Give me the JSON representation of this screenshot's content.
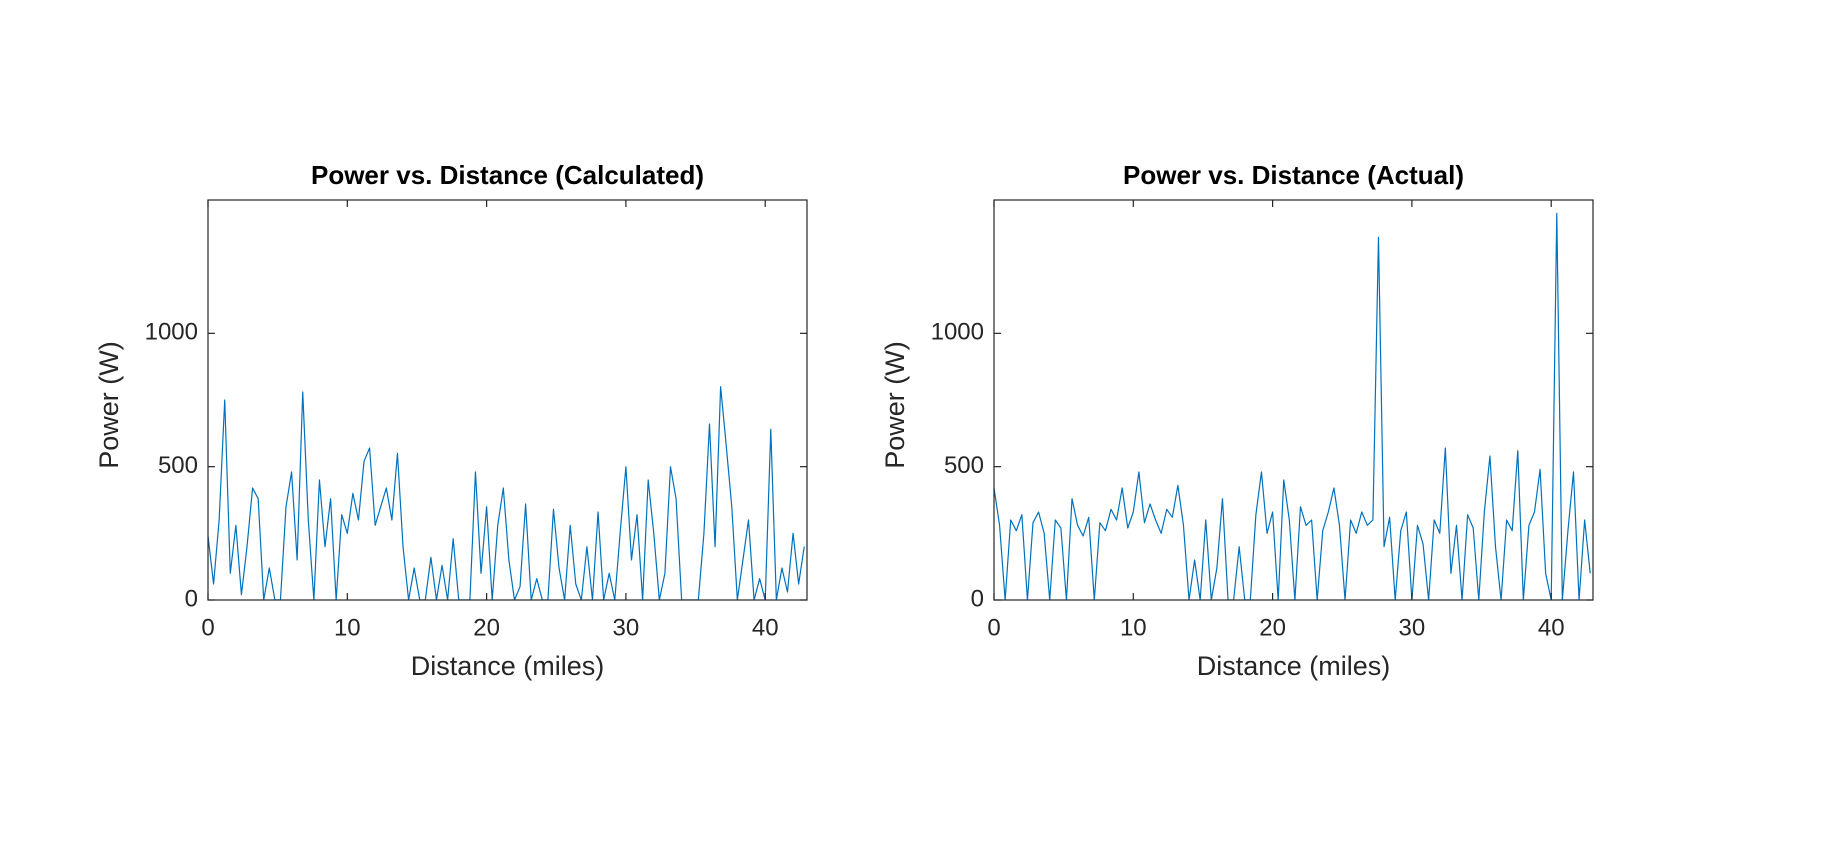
{
  "chart_data": [
    {
      "type": "line",
      "title": "Power vs. Distance (Calculated)",
      "xlabel": "Distance (miles)",
      "ylabel": "Power (W)",
      "color": "#0072bd",
      "xlim": [
        0,
        43
      ],
      "ylim": [
        0,
        1500
      ],
      "xticks": [
        0,
        10,
        20,
        30,
        40
      ],
      "yticks": [
        0,
        500,
        1000
      ],
      "grid": false,
      "x": [
        0,
        0.4,
        0.8,
        1.2,
        1.6,
        2,
        2.4,
        2.8,
        3.2,
        3.6,
        4,
        4.4,
        4.8,
        5.2,
        5.6,
        6,
        6.4,
        6.8,
        7.2,
        7.6,
        8,
        8.4,
        8.8,
        9.2,
        9.6,
        10,
        10.4,
        10.8,
        11.2,
        11.6,
        12,
        12.4,
        12.8,
        13.2,
        13.6,
        14,
        14.4,
        14.8,
        15.2,
        15.6,
        16,
        16.4,
        16.8,
        17.2,
        17.6,
        18,
        18.4,
        18.8,
        19.2,
        19.6,
        20,
        20.4,
        20.8,
        21.2,
        21.6,
        22,
        22.4,
        22.8,
        23.2,
        23.6,
        24,
        24.4,
        24.8,
        25.2,
        25.6,
        26,
        26.4,
        26.8,
        27.2,
        27.6,
        28,
        28.4,
        28.8,
        29.2,
        29.6,
        30,
        30.4,
        30.8,
        31.2,
        31.6,
        32,
        32.4,
        32.8,
        33.2,
        33.6,
        34,
        34.4,
        34.8,
        35.2,
        35.6,
        36,
        36.4,
        36.8,
        37.2,
        37.6,
        38,
        38.4,
        38.8,
        39.2,
        39.6,
        40,
        40.4,
        40.8,
        41.2,
        41.6,
        42,
        42.4,
        42.8
      ],
      "values": [
        240,
        60,
        300,
        750,
        100,
        280,
        20,
        200,
        420,
        380,
        0,
        120,
        0,
        0,
        350,
        480,
        150,
        780,
        300,
        0,
        450,
        200,
        380,
        0,
        320,
        250,
        400,
        300,
        520,
        570,
        280,
        350,
        420,
        300,
        550,
        200,
        0,
        120,
        0,
        0,
        160,
        0,
        130,
        0,
        230,
        0,
        0,
        0,
        480,
        100,
        350,
        0,
        280,
        420,
        150,
        0,
        50,
        360,
        0,
        80,
        0,
        0,
        340,
        120,
        0,
        280,
        60,
        0,
        200,
        0,
        330,
        0,
        100,
        0,
        260,
        500,
        150,
        320,
        0,
        450,
        250,
        0,
        100,
        500,
        380,
        0,
        0,
        0,
        0,
        250,
        660,
        200,
        800,
        580,
        350,
        0,
        150,
        300,
        0,
        80,
        0,
        640,
        0,
        120,
        30,
        250,
        60,
        200
      ]
    },
    {
      "type": "line",
      "title": "Power vs. Distance (Actual)",
      "xlabel": "Distance (miles)",
      "ylabel": "Power (W)",
      "color": "#0072bd",
      "xlim": [
        0,
        43
      ],
      "ylim": [
        0,
        1500
      ],
      "xticks": [
        0,
        10,
        20,
        30,
        40
      ],
      "yticks": [
        0,
        500,
        1000
      ],
      "grid": false,
      "x": [
        0,
        0.4,
        0.8,
        1.2,
        1.6,
        2,
        2.4,
        2.8,
        3.2,
        3.6,
        4,
        4.4,
        4.8,
        5.2,
        5.6,
        6,
        6.4,
        6.8,
        7.2,
        7.6,
        8,
        8.4,
        8.8,
        9.2,
        9.6,
        10,
        10.4,
        10.8,
        11.2,
        11.6,
        12,
        12.4,
        12.8,
        13.2,
        13.6,
        14,
        14.4,
        14.8,
        15.2,
        15.6,
        16,
        16.4,
        16.8,
        17.2,
        17.6,
        18,
        18.4,
        18.8,
        19.2,
        19.6,
        20,
        20.4,
        20.8,
        21.2,
        21.6,
        22,
        22.4,
        22.8,
        23.2,
        23.6,
        24,
        24.4,
        24.8,
        25.2,
        25.6,
        26,
        26.4,
        26.8,
        27.2,
        27.6,
        28,
        28.4,
        28.8,
        29.2,
        29.6,
        30,
        30.4,
        30.8,
        31.2,
        31.6,
        32,
        32.4,
        32.8,
        33.2,
        33.6,
        34,
        34.4,
        34.8,
        35.2,
        35.6,
        36,
        36.4,
        36.8,
        37.2,
        37.6,
        38,
        38.4,
        38.8,
        39.2,
        39.6,
        40,
        40.4,
        40.8,
        41.2,
        41.6,
        42,
        42.4,
        42.8
      ],
      "values": [
        420,
        280,
        0,
        300,
        260,
        320,
        0,
        290,
        330,
        250,
        0,
        300,
        270,
        0,
        380,
        280,
        240,
        310,
        0,
        290,
        260,
        340,
        300,
        420,
        270,
        330,
        480,
        290,
        360,
        300,
        250,
        340,
        310,
        430,
        280,
        0,
        150,
        0,
        300,
        0,
        120,
        380,
        0,
        0,
        200,
        0,
        0,
        320,
        480,
        250,
        330,
        0,
        450,
        300,
        0,
        350,
        280,
        300,
        0,
        260,
        330,
        420,
        280,
        0,
        300,
        250,
        330,
        280,
        300,
        1360,
        200,
        310,
        0,
        260,
        330,
        0,
        280,
        210,
        0,
        300,
        250,
        570,
        100,
        280,
        0,
        320,
        270,
        0,
        330,
        540,
        200,
        0,
        300,
        260,
        560,
        0,
        280,
        330,
        490,
        100,
        0,
        1450,
        0,
        260,
        480,
        0,
        300,
        100
      ]
    }
  ]
}
